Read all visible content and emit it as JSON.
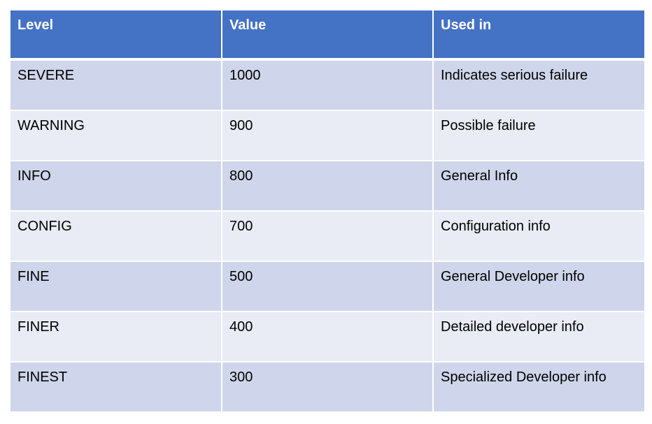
{
  "table": {
    "header": [
      "Level",
      "Value",
      "Used in"
    ],
    "rows": [
      [
        "SEVERE",
        1000,
        "Indicates serious failure"
      ],
      [
        "WARNING",
        900,
        "Possible failure"
      ],
      [
        "INFO",
        800,
        "General Info"
      ],
      [
        "CONFIG",
        700,
        "Configuration info"
      ],
      [
        "FINE",
        500,
        "General Developer info"
      ],
      [
        "FINER",
        400,
        "Detailed developer info"
      ],
      [
        "FINEST",
        300,
        "Specialized Developer info"
      ]
    ]
  }
}
